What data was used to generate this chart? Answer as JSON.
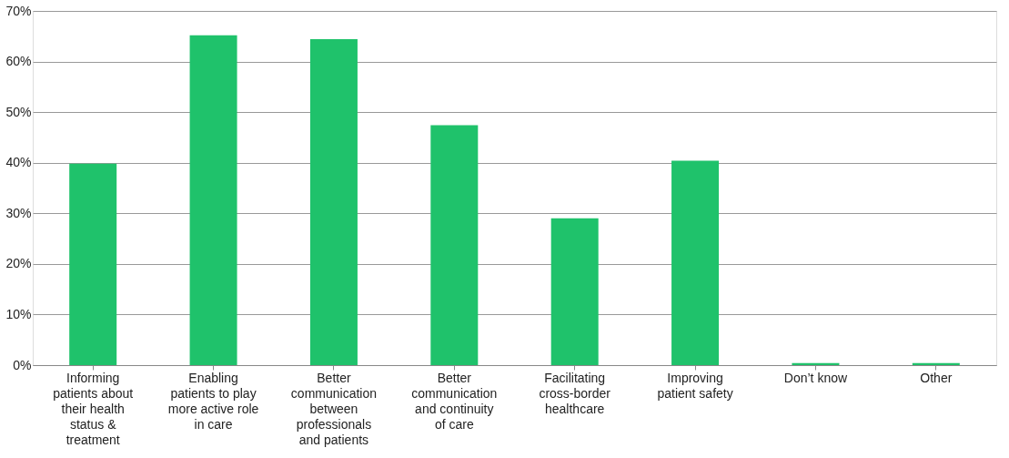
{
  "chart_data": {
    "type": "bar",
    "categories": [
      "Informing patients about their health status & treatment",
      "Enabling patients to play more active role in care",
      "Better communication between professionals and patients",
      "Better communication and continuity of care",
      "Facilitating cross-border healthcare",
      "Improving patient safety",
      "Don’t know",
      "Other"
    ],
    "values": [
      39.8,
      65.2,
      64.4,
      47.4,
      29,
      40.4,
      0.4,
      0.4
    ],
    "color": "#1fc26b",
    "ylim": [
      0,
      70
    ],
    "yticks": [
      {
        "value": 0,
        "label": "0%"
      },
      {
        "value": 10,
        "label": "10%"
      },
      {
        "value": 20,
        "label": "20%"
      },
      {
        "value": 30,
        "label": "30%"
      },
      {
        "value": 40,
        "label": "40%"
      },
      {
        "value": 50,
        "label": "50%"
      },
      {
        "value": 60,
        "label": "60%"
      },
      {
        "value": 70,
        "label": "70%"
      }
    ],
    "grid": "y"
  }
}
